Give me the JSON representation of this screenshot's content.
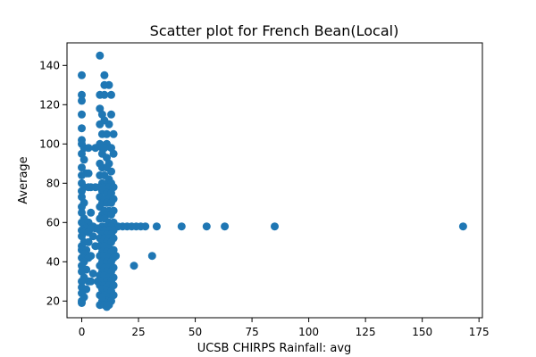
{
  "chart_data": {
    "type": "scatter",
    "title": "Scatter plot for French Bean(Local)",
    "xlabel": "UCSB CHIRPS Rainfall: avg",
    "ylabel": "Average",
    "xlim": [
      -6.5,
      176.5
    ],
    "ylim": [
      11.5,
      151.5
    ],
    "xticks": [
      0,
      25,
      50,
      75,
      100,
      125,
      150,
      175
    ],
    "yticks": [
      20,
      40,
      60,
      80,
      100,
      120,
      140
    ],
    "grid": false,
    "marker_color": "#1f77b4",
    "points": [
      [
        168,
        58
      ],
      [
        85,
        58
      ],
      [
        63,
        58
      ],
      [
        55,
        58
      ],
      [
        44,
        58
      ],
      [
        33,
        58
      ],
      [
        31,
        43
      ],
      [
        23,
        38
      ],
      [
        28,
        58
      ],
      [
        26,
        58
      ],
      [
        24,
        58
      ],
      [
        22,
        58
      ],
      [
        20,
        58
      ],
      [
        18,
        58
      ],
      [
        16,
        58
      ],
      [
        15,
        43
      ],
      [
        8,
        145
      ],
      [
        10,
        135
      ],
      [
        0,
        135
      ],
      [
        12,
        130
      ],
      [
        10,
        130
      ],
      [
        8,
        125
      ],
      [
        10,
        125
      ],
      [
        13,
        125
      ],
      [
        0,
        125
      ],
      [
        0,
        122
      ],
      [
        8,
        118
      ],
      [
        9,
        115
      ],
      [
        0,
        115
      ],
      [
        13,
        115
      ],
      [
        10,
        112
      ],
      [
        8,
        110
      ],
      [
        12,
        110
      ],
      [
        0,
        108
      ],
      [
        9,
        105
      ],
      [
        11,
        105
      ],
      [
        14,
        105
      ],
      [
        0,
        102
      ],
      [
        8,
        100
      ],
      [
        11,
        100
      ],
      [
        13,
        98
      ],
      [
        0,
        100
      ],
      [
        1,
        98
      ],
      [
        6,
        98
      ],
      [
        9,
        98
      ],
      [
        10,
        98
      ],
      [
        3,
        98
      ],
      [
        0,
        95
      ],
      [
        9,
        95
      ],
      [
        11,
        93
      ],
      [
        14,
        95
      ],
      [
        1,
        92
      ],
      [
        8,
        90
      ],
      [
        12,
        90
      ],
      [
        0,
        88
      ],
      [
        9,
        88
      ],
      [
        11,
        88
      ],
      [
        13,
        86
      ],
      [
        2,
        85
      ],
      [
        0,
        84
      ],
      [
        8,
        84
      ],
      [
        10,
        84
      ],
      [
        3,
        85
      ],
      [
        12,
        82
      ],
      [
        0,
        80
      ],
      [
        9,
        80
      ],
      [
        11,
        80
      ],
      [
        13,
        80
      ],
      [
        1,
        78
      ],
      [
        4,
        78
      ],
      [
        6,
        78
      ],
      [
        8,
        78
      ],
      [
        10,
        78
      ],
      [
        12,
        78
      ],
      [
        14,
        78
      ],
      [
        3,
        78
      ],
      [
        0,
        76
      ],
      [
        9,
        76
      ],
      [
        11,
        75
      ],
      [
        13,
        75
      ],
      [
        0,
        73
      ],
      [
        8,
        73
      ],
      [
        10,
        72
      ],
      [
        12,
        72
      ],
      [
        14,
        72
      ],
      [
        1,
        70
      ],
      [
        9,
        70
      ],
      [
        11,
        70
      ],
      [
        13,
        70
      ],
      [
        0,
        68
      ],
      [
        8,
        68
      ],
      [
        10,
        66
      ],
      [
        12,
        66
      ],
      [
        14,
        66
      ],
      [
        0,
        65
      ],
      [
        4,
        65
      ],
      [
        9,
        64
      ],
      [
        11,
        64
      ],
      [
        13,
        64
      ],
      [
        1,
        62
      ],
      [
        8,
        62
      ],
      [
        10,
        62
      ],
      [
        12,
        60
      ],
      [
        14,
        60
      ],
      [
        0,
        60
      ],
      [
        3,
        60
      ],
      [
        9,
        58
      ],
      [
        11,
        58
      ],
      [
        13,
        58
      ],
      [
        5,
        58
      ],
      [
        1,
        58
      ],
      [
        6,
        57
      ],
      [
        7,
        57
      ],
      [
        2,
        57
      ],
      [
        4,
        57
      ],
      [
        0,
        56
      ],
      [
        8,
        56
      ],
      [
        10,
        56
      ],
      [
        12,
        56
      ],
      [
        14,
        56
      ],
      [
        1,
        55
      ],
      [
        3,
        55
      ],
      [
        9,
        54
      ],
      [
        11,
        54
      ],
      [
        13,
        54
      ],
      [
        0,
        53
      ],
      [
        5,
        53
      ],
      [
        8,
        52
      ],
      [
        10,
        52
      ],
      [
        12,
        52
      ],
      [
        14,
        52
      ],
      [
        1,
        50
      ],
      [
        3,
        50
      ],
      [
        9,
        50
      ],
      [
        11,
        50
      ],
      [
        13,
        50
      ],
      [
        0,
        48
      ],
      [
        6,
        48
      ],
      [
        8,
        48
      ],
      [
        10,
        48
      ],
      [
        12,
        47
      ],
      [
        14,
        46
      ],
      [
        0,
        46
      ],
      [
        2,
        46
      ],
      [
        9,
        45
      ],
      [
        11,
        45
      ],
      [
        13,
        45
      ],
      [
        1,
        44
      ],
      [
        4,
        43
      ],
      [
        8,
        43
      ],
      [
        10,
        43
      ],
      [
        12,
        42
      ],
      [
        14,
        42
      ],
      [
        0,
        42
      ],
      [
        3,
        42
      ],
      [
        9,
        40
      ],
      [
        11,
        40
      ],
      [
        13,
        40
      ],
      [
        1,
        40
      ],
      [
        0,
        38
      ],
      [
        8,
        38
      ],
      [
        10,
        37
      ],
      [
        12,
        37
      ],
      [
        14,
        37
      ],
      [
        2,
        36
      ],
      [
        9,
        35
      ],
      [
        11,
        35
      ],
      [
        13,
        35
      ],
      [
        0,
        35
      ],
      [
        5,
        34
      ],
      [
        8,
        33
      ],
      [
        10,
        33
      ],
      [
        12,
        32
      ],
      [
        14,
        32
      ],
      [
        1,
        32
      ],
      [
        3,
        30
      ],
      [
        7,
        30
      ],
      [
        9,
        30
      ],
      [
        11,
        30
      ],
      [
        13,
        30
      ],
      [
        0,
        30
      ],
      [
        4,
        30
      ],
      [
        8,
        28
      ],
      [
        10,
        28
      ],
      [
        12,
        28
      ],
      [
        14,
        28
      ],
      [
        0,
        27
      ],
      [
        2,
        26
      ],
      [
        9,
        26
      ],
      [
        11,
        25
      ],
      [
        13,
        25
      ],
      [
        0,
        24
      ],
      [
        8,
        23
      ],
      [
        10,
        23
      ],
      [
        12,
        22
      ],
      [
        14,
        23
      ],
      [
        1,
        22
      ],
      [
        0,
        20
      ],
      [
        9,
        20
      ],
      [
        11,
        20
      ],
      [
        13,
        20
      ],
      [
        0,
        19
      ],
      [
        8,
        18
      ],
      [
        10,
        18
      ],
      [
        12,
        18
      ],
      [
        9,
        22
      ],
      [
        11,
        17
      ]
    ]
  }
}
